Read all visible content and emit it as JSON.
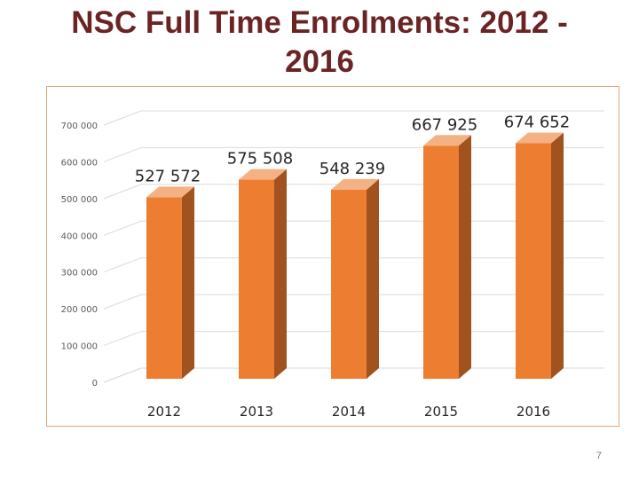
{
  "slide": {
    "title_line1": "NSC Full Time Enrolments: 2012 -",
    "title_line2": "2016",
    "page_number": "7"
  },
  "chart_data": {
    "type": "bar",
    "title": "",
    "categories": [
      "2012",
      "2013",
      "2014",
      "2015",
      "2016"
    ],
    "values": [
      527572,
      575508,
      548239,
      667925,
      674652
    ],
    "value_labels": [
      "527 572",
      "575 508",
      "548 239",
      "667 925",
      "674 652"
    ],
    "y_ticks": [
      0,
      100000,
      200000,
      300000,
      400000,
      500000,
      600000,
      700000
    ],
    "y_tick_labels": [
      "0",
      "100 000",
      "200 000",
      "300 000",
      "400 000",
      "500 000",
      "600 000",
      "700 000"
    ],
    "ylim": [
      0,
      700000
    ],
    "grid": true,
    "legend": "none",
    "colors": {
      "bar_front": "#ed7d31",
      "bar_side": "#a0521f",
      "bar_top": "#f4b183",
      "grid": "#dadada",
      "frame": "#e3a87c",
      "title": "#6a2424"
    }
  }
}
